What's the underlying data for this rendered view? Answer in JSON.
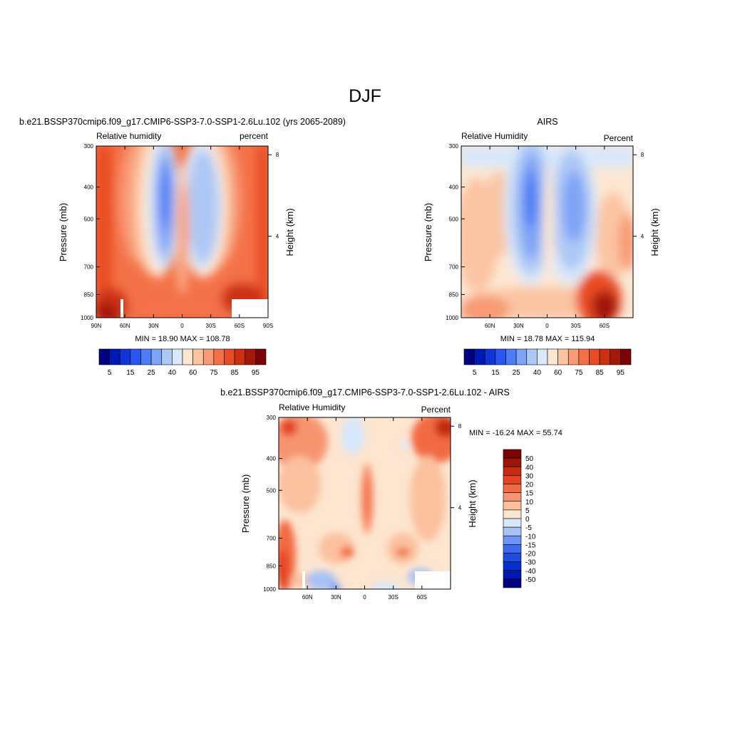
{
  "page": {
    "main_title": "DJF"
  },
  "colors": {
    "rh_scale": [
      "#000080",
      "#0019b3",
      "#0f35d9",
      "#2a55f0",
      "#4d7cf5",
      "#7fa3f7",
      "#aec8f5",
      "#d9e8fb",
      "#fde7d2",
      "#fbc4a3",
      "#f89a75",
      "#f47148",
      "#e94c24",
      "#cc3012",
      "#a3180b",
      "#7a0403"
    ],
    "diff_scale": [
      "#000080",
      "#0018b0",
      "#0630cc",
      "#1c4ddf",
      "#3b6cef",
      "#6d95f5",
      "#a7c2f5",
      "#d7e8fb",
      "#fde5d0",
      "#fbc19f",
      "#f79470",
      "#f26a42",
      "#e44320",
      "#c52c0f",
      "#9c1607",
      "#790404"
    ]
  },
  "chart_data": [
    {
      "type": "heatmap",
      "id": "model",
      "title": "b.e21.BSSP370cmip6.f09_g17.CMIP6-SSP3-7.0-SSP1-2.6Lu.102 (yrs 2065-2089)",
      "left_label": "Relative humidity",
      "right_label": "percent",
      "ylabel": "Pressure (mb)",
      "ylabel_right": "Height (km)",
      "pressure_ticks": [
        "300",
        "400",
        "500",
        "700",
        "850",
        "1000"
      ],
      "height_ticks": [
        "8",
        "4"
      ],
      "x_ticks": [
        "90N",
        "60N",
        "30N",
        "0",
        "30S",
        "60S",
        "90S"
      ],
      "stats": "MIN =  18.90  MAX = 108.78",
      "colorbar_labels": [
        "5",
        "15",
        "25",
        "40",
        "60",
        "75",
        "85",
        "95"
      ],
      "xlim": [
        90,
        -90
      ],
      "ylim": [
        1000,
        300
      ]
    },
    {
      "type": "heatmap",
      "id": "obs",
      "title": "AIRS",
      "left_label": "Relative Humidity",
      "right_label": "Percent",
      "ylabel": "Pressure (mb)",
      "ylabel_right": "Height (km)",
      "pressure_ticks": [
        "300",
        "400",
        "500",
        "700",
        "850",
        "1000"
      ],
      "height_ticks": [
        "8",
        "4"
      ],
      "x_ticks": [
        "60N",
        "30N",
        "0",
        "30S",
        "60S"
      ],
      "stats": "MIN =  18.78  MAX = 115.94",
      "colorbar_labels": [
        "5",
        "15",
        "25",
        "40",
        "60",
        "75",
        "85",
        "95"
      ],
      "xlim": [
        90,
        -90
      ],
      "ylim": [
        1000,
        300
      ]
    },
    {
      "type": "heatmap",
      "id": "diff",
      "title": "b.e21.BSSP370cmip6.f09_g17.CMIP6-SSP3-7.0-SSP1-2.6Lu.102 - AIRS",
      "left_label": "Relative Humidity",
      "right_label": "Percent",
      "ylabel": "Pressure (mb)",
      "ylabel_right": "Height (km)",
      "pressure_ticks": [
        "300",
        "400",
        "500",
        "700",
        "850",
        "1000"
      ],
      "height_ticks": [
        "8",
        "4"
      ],
      "x_ticks": [
        "60N",
        "30N",
        "0",
        "30S",
        "60S"
      ],
      "stats": "MIN = -16.24  MAX =  55.74",
      "colorbar_labels": [
        "50",
        "40",
        "30",
        "20",
        "15",
        "10",
        "5",
        "0",
        "-5",
        "-10",
        "-15",
        "-20",
        "-30",
        "-40",
        "-50"
      ],
      "xlim": [
        90,
        -90
      ],
      "ylim": [
        1000,
        300
      ]
    }
  ]
}
